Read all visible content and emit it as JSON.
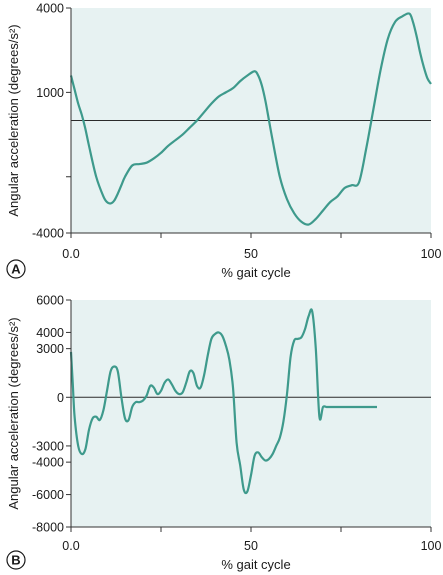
{
  "chart_data": [
    {
      "type": "line",
      "panel_label": "A",
      "xlabel": "% gait cycle",
      "ylabel": "Angular acceleration (degrees/s²)",
      "xlim": [
        0,
        100
      ],
      "ylim": [
        -4000,
        4000
      ],
      "x_ticks": [
        0,
        25,
        50,
        75,
        100
      ],
      "x_tick_labels": [
        "0.0",
        "",
        "50",
        "",
        "100"
      ],
      "y_ticks": [
        -4000,
        -2000,
        1000,
        4000
      ],
      "y_tick_labels": [
        "-4000",
        "",
        "1000",
        "4000"
      ],
      "reference_line_y": 0,
      "colors": {
        "line": "#3e9a8c",
        "plot_background": "#e7f2f2",
        "axis": "#333333"
      },
      "series": [
        {
          "x": [
            0,
            1,
            2,
            3,
            4,
            5,
            7,
            9,
            10,
            11,
            12,
            13,
            14,
            15,
            17,
            19,
            21,
            23,
            25,
            27,
            29,
            31,
            33,
            35,
            37,
            39,
            41,
            43,
            45,
            47,
            49,
            51,
            52,
            53,
            54,
            55,
            56,
            58,
            60,
            62,
            64,
            66,
            68,
            70,
            72,
            74,
            76,
            78,
            80,
            82,
            84,
            86,
            88,
            90,
            92,
            94,
            95,
            96,
            97,
            98,
            99,
            100
          ],
          "y": [
            1600,
            1100,
            600,
            200,
            -300,
            -900,
            -2000,
            -2700,
            -2900,
            -2950,
            -2850,
            -2600,
            -2300,
            -2000,
            -1600,
            -1550,
            -1500,
            -1350,
            -1150,
            -900,
            -700,
            -500,
            -250,
            0,
            300,
            600,
            850,
            1000,
            1150,
            1400,
            1600,
            1750,
            1600,
            1250,
            700,
            0,
            -700,
            -2000,
            -2800,
            -3300,
            -3600,
            -3700,
            -3500,
            -3200,
            -2900,
            -2700,
            -2400,
            -2300,
            -2200,
            -1000,
            400,
            1800,
            2900,
            3500,
            3700,
            3800,
            3500,
            3000,
            2400,
            1900,
            1500,
            1300
          ]
        }
      ]
    },
    {
      "type": "line",
      "panel_label": "B",
      "xlabel": "% gait cycle",
      "ylabel": "Angular acceleration (degrees/s²)",
      "xlim": [
        0,
        100
      ],
      "ylim": [
        -8000,
        6000
      ],
      "x_ticks": [
        0,
        25,
        50,
        75,
        100
      ],
      "x_tick_labels": [
        "0.0",
        "",
        "50",
        "",
        "100"
      ],
      "y_ticks": [
        -8000,
        -6000,
        -4000,
        -3000,
        0,
        3000,
        4000,
        6000
      ],
      "y_tick_labels": [
        "-8000",
        "-6000",
        "-4000",
        "-3000",
        "0",
        "3000",
        "4000",
        "6000"
      ],
      "reference_line_y": 0,
      "colors": {
        "line": "#3e9a8c",
        "plot_background": "#e7f2f2",
        "axis": "#333333"
      },
      "series": [
        {
          "x": [
            0,
            0.5,
            1,
            2,
            3,
            4,
            5,
            6,
            7,
            8,
            9,
            10,
            11,
            12,
            13,
            14,
            15,
            16,
            17,
            18,
            19,
            20,
            21,
            22,
            23,
            24,
            25,
            26,
            27,
            28,
            29,
            30,
            31,
            32,
            33,
            34,
            35,
            36,
            37,
            38,
            39,
            40,
            41,
            42,
            43,
            44,
            45,
            46,
            47,
            48,
            49,
            50,
            51,
            52,
            53,
            54,
            55,
            56,
            57,
            58,
            59,
            60,
            61,
            62,
            63,
            64,
            65,
            66,
            67,
            68,
            69,
            70,
            71,
            72,
            73,
            74,
            75,
            76,
            77,
            78,
            79,
            80,
            81,
            82,
            83,
            84,
            85
          ],
          "y": [
            2800,
            800,
            -1200,
            -3000,
            -3500,
            -3200,
            -2000,
            -1300,
            -1200,
            -1400,
            -800,
            400,
            1600,
            1900,
            1600,
            0,
            -1300,
            -1400,
            -600,
            -300,
            -300,
            -200,
            100,
            700,
            600,
            200,
            400,
            900,
            1100,
            800,
            400,
            200,
            300,
            900,
            1600,
            1500,
            700,
            600,
            1400,
            2600,
            3600,
            3900,
            4000,
            3800,
            3200,
            2300,
            600,
            -2800,
            -4200,
            -5700,
            -5800,
            -4800,
            -3600,
            -3400,
            -3700,
            -3900,
            -3800,
            -3500,
            -3000,
            -2500,
            -1500,
            200,
            2500,
            3500,
            3600,
            3700,
            4200,
            5000,
            5300,
            3000,
            -1200,
            -600,
            -600,
            -600,
            -600,
            -600,
            -600,
            -600,
            -600,
            -600,
            -600,
            -600,
            -600,
            -600,
            -600,
            -600,
            -600
          ]
        }
      ]
    }
  ]
}
